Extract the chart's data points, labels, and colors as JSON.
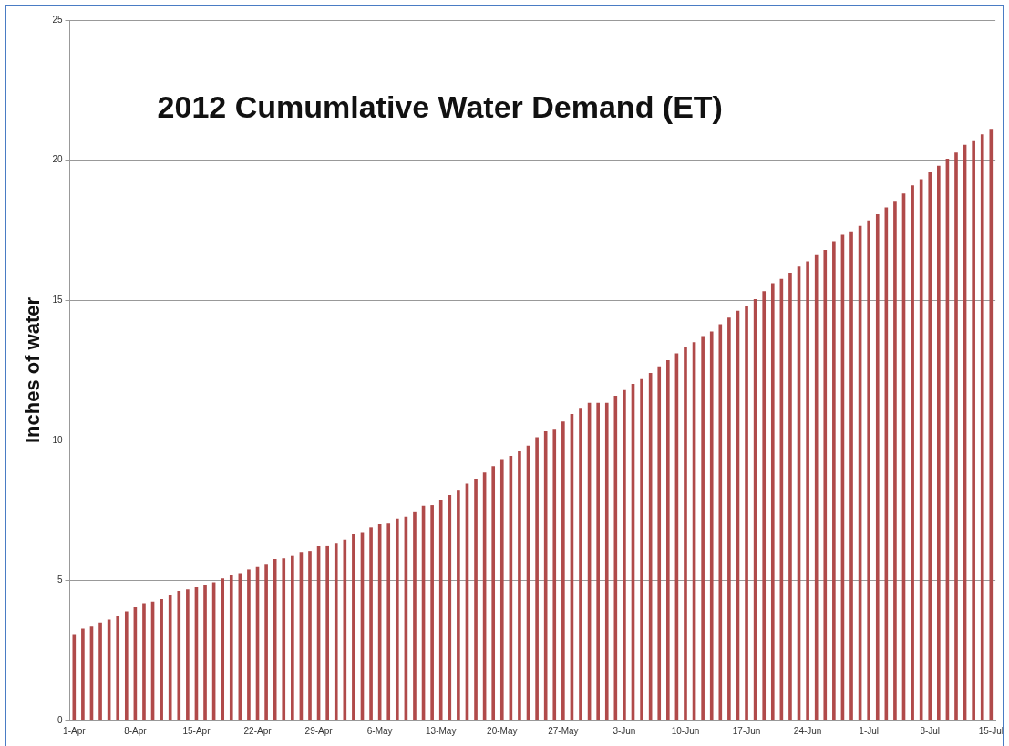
{
  "chart_data": {
    "type": "bar",
    "title": "2012 Cumumlative Water Demand (ET)",
    "ylabel": "Inches of water",
    "categories": [
      "1-Apr",
      null,
      null,
      null,
      null,
      null,
      null,
      "8-Apr",
      null,
      null,
      null,
      null,
      null,
      null,
      "15-Apr",
      null,
      null,
      null,
      null,
      null,
      null,
      "22-Apr",
      null,
      null,
      null,
      null,
      null,
      null,
      "29-Apr",
      null,
      null,
      null,
      null,
      null,
      null,
      "6-May",
      null,
      null,
      null,
      null,
      null,
      null,
      "13-May",
      null,
      null,
      null,
      null,
      null,
      null,
      "20-May",
      null,
      null,
      null,
      null,
      null,
      null,
      "27-May",
      null,
      null,
      null,
      null,
      null,
      null,
      "3-Jun",
      null,
      null,
      null,
      null,
      null,
      null,
      "10-Jun",
      null,
      null,
      null,
      null,
      null,
      null,
      "17-Jun",
      null,
      null,
      null,
      null,
      null,
      null,
      "24-Jun",
      null,
      null,
      null,
      null,
      null,
      null,
      "1-Jul",
      null,
      null,
      null,
      null,
      null,
      null,
      "8-Jul",
      null,
      null,
      null,
      null,
      null,
      null,
      "15-Jul"
    ],
    "values": [
      3.08,
      3.27,
      3.38,
      3.49,
      3.6,
      3.74,
      3.89,
      4.04,
      4.18,
      4.24,
      4.33,
      4.49,
      4.62,
      4.68,
      4.75,
      4.84,
      4.93,
      5.07,
      5.19,
      5.26,
      5.39,
      5.48,
      5.59,
      5.76,
      5.79,
      5.87,
      6.01,
      6.05,
      6.22,
      6.22,
      6.34,
      6.45,
      6.67,
      6.72,
      6.89,
      7.0,
      7.02,
      7.2,
      7.27,
      7.46,
      7.66,
      7.68,
      7.88,
      8.04,
      8.23,
      8.45,
      8.63,
      8.85,
      9.07,
      9.33,
      9.44,
      9.62,
      9.81,
      10.11,
      10.32,
      10.41,
      10.67,
      10.94,
      11.16,
      11.34,
      11.34,
      11.34,
      11.59,
      11.79,
      12.01,
      12.18,
      12.4,
      12.64,
      12.86,
      13.1,
      13.33,
      13.5,
      13.72,
      13.88,
      14.14,
      14.38,
      14.62,
      14.8,
      15.04,
      15.32,
      15.61,
      15.76,
      15.98,
      16.2,
      16.39,
      16.61,
      16.8,
      17.11,
      17.33,
      17.46,
      17.65,
      17.85,
      18.07,
      18.31,
      18.55,
      18.81,
      19.1,
      19.32,
      19.56,
      19.8,
      20.05,
      20.27,
      20.55,
      20.68,
      20.92,
      21.12
    ],
    "color": "#b04a4a",
    "ylim": [
      0,
      25
    ],
    "yticks": [
      0,
      5,
      10,
      15,
      20,
      25
    ],
    "grid": "y"
  }
}
